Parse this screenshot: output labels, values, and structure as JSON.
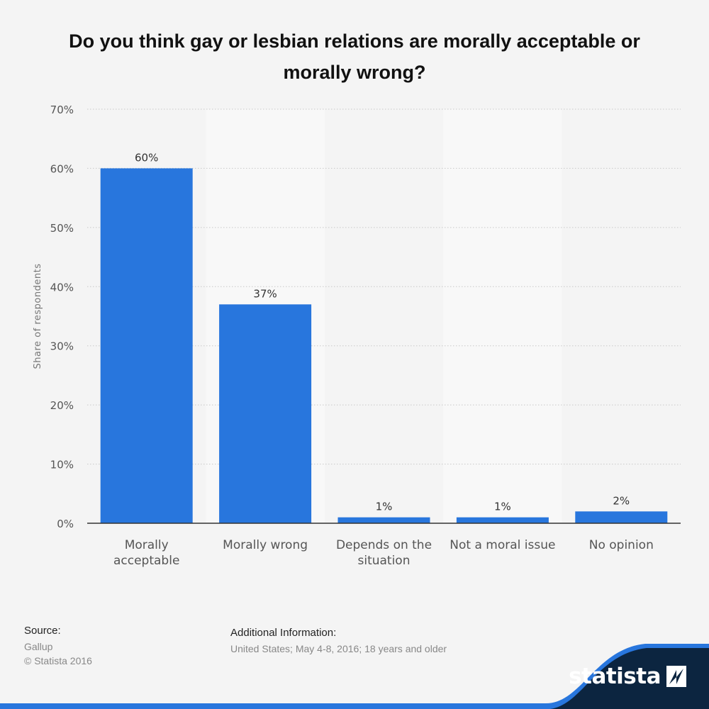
{
  "chart_data": {
    "type": "bar",
    "title": "Do you think gay or lesbian relations are morally acceptable or morally wrong?",
    "categories": [
      "Morally acceptable",
      "Morally wrong",
      "Depends on the situation",
      "Not a moral issue",
      "No opinion"
    ],
    "category_lines": [
      [
        "Morally",
        "acceptable"
      ],
      [
        "Morally wrong"
      ],
      [
        "Depends on the",
        "situation"
      ],
      [
        "Not a moral issue"
      ],
      [
        "No opinion"
      ]
    ],
    "values": [
      60,
      37,
      1,
      1,
      2
    ],
    "data_labels": [
      "60%",
      "37%",
      "1%",
      "1%",
      "2%"
    ],
    "ylabel": "Share of respondents",
    "xlabel": "",
    "ylim": [
      0,
      70
    ],
    "y_ticks": [
      "0%",
      "10%",
      "20%",
      "30%",
      "40%",
      "50%",
      "60%",
      "70%"
    ],
    "grid": true,
    "bar_color": "#2876dd"
  },
  "footer": {
    "source_label": "Source:",
    "source_name": "Gallup",
    "copyright": "© Statista 2016",
    "additional_label": "Additional Information:",
    "additional_text": "United States; May 4-8, 2016; 18 years and older"
  },
  "brand": {
    "logo_text": "statista",
    "dark_color": "#0c2540",
    "accent_color": "#2876dd"
  }
}
